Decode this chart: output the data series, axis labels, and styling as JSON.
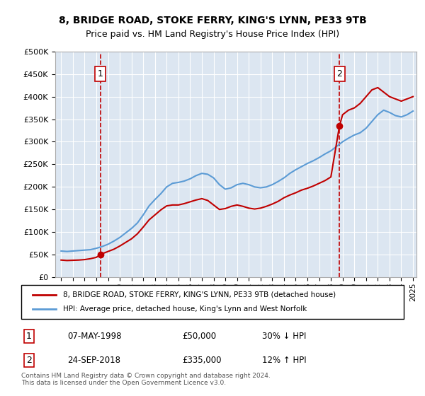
{
  "title": "8, BRIDGE ROAD, STOKE FERRY, KING'S LYNN, PE33 9TB",
  "subtitle": "Price paid vs. HM Land Registry's House Price Index (HPI)",
  "legend_line1": "8, BRIDGE ROAD, STOKE FERRY, KING'S LYNN, PE33 9TB (detached house)",
  "legend_line2": "HPI: Average price, detached house, King's Lynn and West Norfolk",
  "transaction1_label": "1",
  "transaction1_date": "07-MAY-1998",
  "transaction1_price": "£50,000",
  "transaction1_hpi": "30% ↓ HPI",
  "transaction2_label": "2",
  "transaction2_date": "24-SEP-2018",
  "transaction2_price": "£335,000",
  "transaction2_hpi": "12% ↑ HPI",
  "copyright": "Contains HM Land Registry data © Crown copyright and database right 2024.\nThis data is licensed under the Open Government Licence v3.0.",
  "hpi_color": "#5b9bd5",
  "price_color": "#c00000",
  "dashed_line_color": "#c00000",
  "background_color": "#dce6f1",
  "plot_bg": "#dce6f1",
  "ylim": [
    0,
    500000
  ],
  "yticks": [
    0,
    50000,
    100000,
    150000,
    200000,
    250000,
    300000,
    350000,
    400000,
    450000,
    500000
  ],
  "x_start_year": 1995,
  "x_end_year": 2025,
  "transaction1_year": 1998.35,
  "transaction2_year": 2018.73,
  "hpi_years": [
    1995,
    1995.5,
    1996,
    1996.5,
    1997,
    1997.5,
    1998,
    1998.5,
    1999,
    1999.5,
    2000,
    2000.5,
    2001,
    2001.5,
    2002,
    2002.5,
    2003,
    2003.5,
    2004,
    2004.5,
    2005,
    2005.5,
    2006,
    2006.5,
    2007,
    2007.5,
    2008,
    2008.5,
    2009,
    2009.5,
    2010,
    2010.5,
    2011,
    2011.5,
    2012,
    2012.5,
    2013,
    2013.5,
    2014,
    2014.5,
    2015,
    2015.5,
    2016,
    2016.5,
    2017,
    2017.5,
    2018,
    2018.5,
    2019,
    2019.5,
    2020,
    2020.5,
    2021,
    2021.5,
    2022,
    2022.5,
    2023,
    2023.5,
    2024,
    2024.5,
    2025
  ],
  "hpi_values": [
    58000,
    57000,
    58000,
    59000,
    60000,
    61000,
    64000,
    68000,
    73000,
    80000,
    88000,
    98000,
    108000,
    120000,
    138000,
    158000,
    172000,
    185000,
    200000,
    208000,
    210000,
    213000,
    218000,
    225000,
    230000,
    228000,
    220000,
    205000,
    195000,
    198000,
    205000,
    208000,
    205000,
    200000,
    198000,
    200000,
    205000,
    212000,
    220000,
    230000,
    238000,
    245000,
    252000,
    258000,
    265000,
    273000,
    280000,
    290000,
    300000,
    308000,
    315000,
    320000,
    330000,
    345000,
    360000,
    370000,
    365000,
    358000,
    355000,
    360000,
    368000
  ],
  "price_years": [
    1995,
    1995.5,
    1996,
    1996.5,
    1997,
    1997.5,
    1998,
    1998.35,
    1998.5,
    1999,
    1999.5,
    2000,
    2000.5,
    2001,
    2001.5,
    2002,
    2002.5,
    2003,
    2003.5,
    2004,
    2004.5,
    2005,
    2005.5,
    2006,
    2006.5,
    2007,
    2007.5,
    2008,
    2008.5,
    2009,
    2009.5,
    2010,
    2010.5,
    2011,
    2011.5,
    2012,
    2012.5,
    2013,
    2013.5,
    2014,
    2014.5,
    2015,
    2015.5,
    2016,
    2016.5,
    2017,
    2017.5,
    2018,
    2018.73,
    2019,
    2019.5,
    2020,
    2020.5,
    2021,
    2021.5,
    2022,
    2022.5,
    2023,
    2023.5,
    2024,
    2024.5,
    2025
  ],
  "price_values": [
    38000,
    37000,
    37500,
    38000,
    39000,
    41000,
    44000,
    50000,
    52000,
    57000,
    62000,
    69000,
    77000,
    85000,
    96000,
    111000,
    127000,
    138000,
    149000,
    158000,
    160000,
    160000,
    163000,
    167000,
    171000,
    174000,
    170000,
    160000,
    150000,
    152000,
    157000,
    160000,
    157000,
    153000,
    151000,
    153000,
    157000,
    162000,
    168000,
    176000,
    182000,
    187000,
    193000,
    197000,
    202000,
    208000,
    214000,
    222000,
    335000,
    360000,
    370000,
    375000,
    385000,
    400000,
    415000,
    420000,
    410000,
    400000,
    395000,
    390000,
    395000,
    400000
  ]
}
